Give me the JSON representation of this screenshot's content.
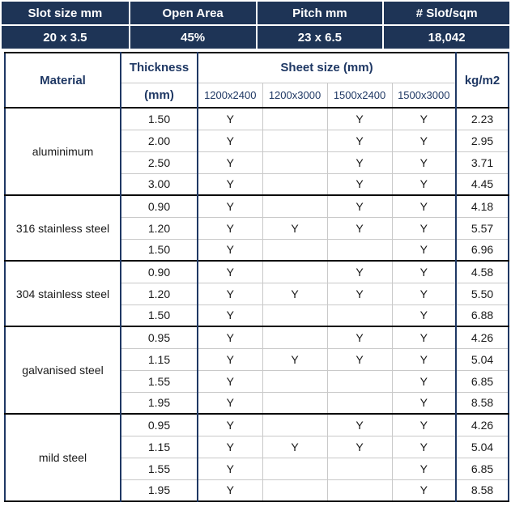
{
  "chart_data": {
    "type": "table",
    "summary_bar": [
      {
        "label": "Slot size mm",
        "value": "20 x 3.5"
      },
      {
        "label": "Open Area",
        "value": "45%"
      },
      {
        "label": "Pitch mm",
        "value": "23 x 6.5"
      },
      {
        "label": "# Slot/sqm",
        "value": "18,042"
      }
    ],
    "headers": {
      "material": "Material",
      "thickness_line1": "Thickness",
      "thickness_line2": "(mm)",
      "sheet_size_group": "Sheet size (mm)",
      "sheet_sizes": [
        "1200x2400",
        "1200x3000",
        "1500x2400",
        "1500x3000"
      ],
      "weight": "kg/m2"
    },
    "availability_mark": "Y",
    "materials": [
      {
        "name": "aluminimum",
        "rows": [
          {
            "thickness": "1.50",
            "available": [
              "Y",
              "",
              "Y",
              "Y"
            ],
            "kg_per_m2": "2.23"
          },
          {
            "thickness": "2.00",
            "available": [
              "Y",
              "",
              "Y",
              "Y"
            ],
            "kg_per_m2": "2.95"
          },
          {
            "thickness": "2.50",
            "available": [
              "Y",
              "",
              "Y",
              "Y"
            ],
            "kg_per_m2": "3.71"
          },
          {
            "thickness": "3.00",
            "available": [
              "Y",
              "",
              "Y",
              "Y"
            ],
            "kg_per_m2": "4.45"
          }
        ]
      },
      {
        "name": "316 stainless steel",
        "rows": [
          {
            "thickness": "0.90",
            "available": [
              "Y",
              "",
              "Y",
              "Y"
            ],
            "kg_per_m2": "4.18"
          },
          {
            "thickness": "1.20",
            "available": [
              "Y",
              "Y",
              "Y",
              "Y"
            ],
            "kg_per_m2": "5.57"
          },
          {
            "thickness": "1.50",
            "available": [
              "Y",
              "",
              "",
              "Y"
            ],
            "kg_per_m2": "6.96"
          }
        ]
      },
      {
        "name": "304 stainless steel",
        "rows": [
          {
            "thickness": "0.90",
            "available": [
              "Y",
              "",
              "Y",
              "Y"
            ],
            "kg_per_m2": "4.58"
          },
          {
            "thickness": "1.20",
            "available": [
              "Y",
              "Y",
              "Y",
              "Y"
            ],
            "kg_per_m2": "5.50"
          },
          {
            "thickness": "1.50",
            "available": [
              "Y",
              "",
              "",
              "Y"
            ],
            "kg_per_m2": "6.88"
          }
        ]
      },
      {
        "name": "galvanised steel",
        "rows": [
          {
            "thickness": "0.95",
            "available": [
              "Y",
              "",
              "Y",
              "Y"
            ],
            "kg_per_m2": "4.26"
          },
          {
            "thickness": "1.15",
            "available": [
              "Y",
              "Y",
              "Y",
              "Y"
            ],
            "kg_per_m2": "5.04"
          },
          {
            "thickness": "1.55",
            "available": [
              "Y",
              "",
              "",
              "Y"
            ],
            "kg_per_m2": "6.85"
          },
          {
            "thickness": "1.95",
            "available": [
              "Y",
              "",
              "",
              "Y"
            ],
            "kg_per_m2": "8.58"
          }
        ]
      },
      {
        "name": "mild steel",
        "rows": [
          {
            "thickness": "0.95",
            "available": [
              "Y",
              "",
              "Y",
              "Y"
            ],
            "kg_per_m2": "4.26"
          },
          {
            "thickness": "1.15",
            "available": [
              "Y",
              "Y",
              "Y",
              "Y"
            ],
            "kg_per_m2": "5.04"
          },
          {
            "thickness": "1.55",
            "available": [
              "Y",
              "",
              "",
              "Y"
            ],
            "kg_per_m2": "6.85"
          },
          {
            "thickness": "1.95",
            "available": [
              "Y",
              "",
              "",
              "Y"
            ],
            "kg_per_m2": "8.58"
          }
        ]
      }
    ]
  },
  "colors": {
    "band_background": "#1E3456",
    "band_text": "#FFFFFF",
    "header_text": "#1F3864",
    "data_text": "#1A1A1A",
    "group_divider": "#0B0B0B",
    "column_divider": "#1F3864",
    "grid_light": "#C9C9C9"
  }
}
